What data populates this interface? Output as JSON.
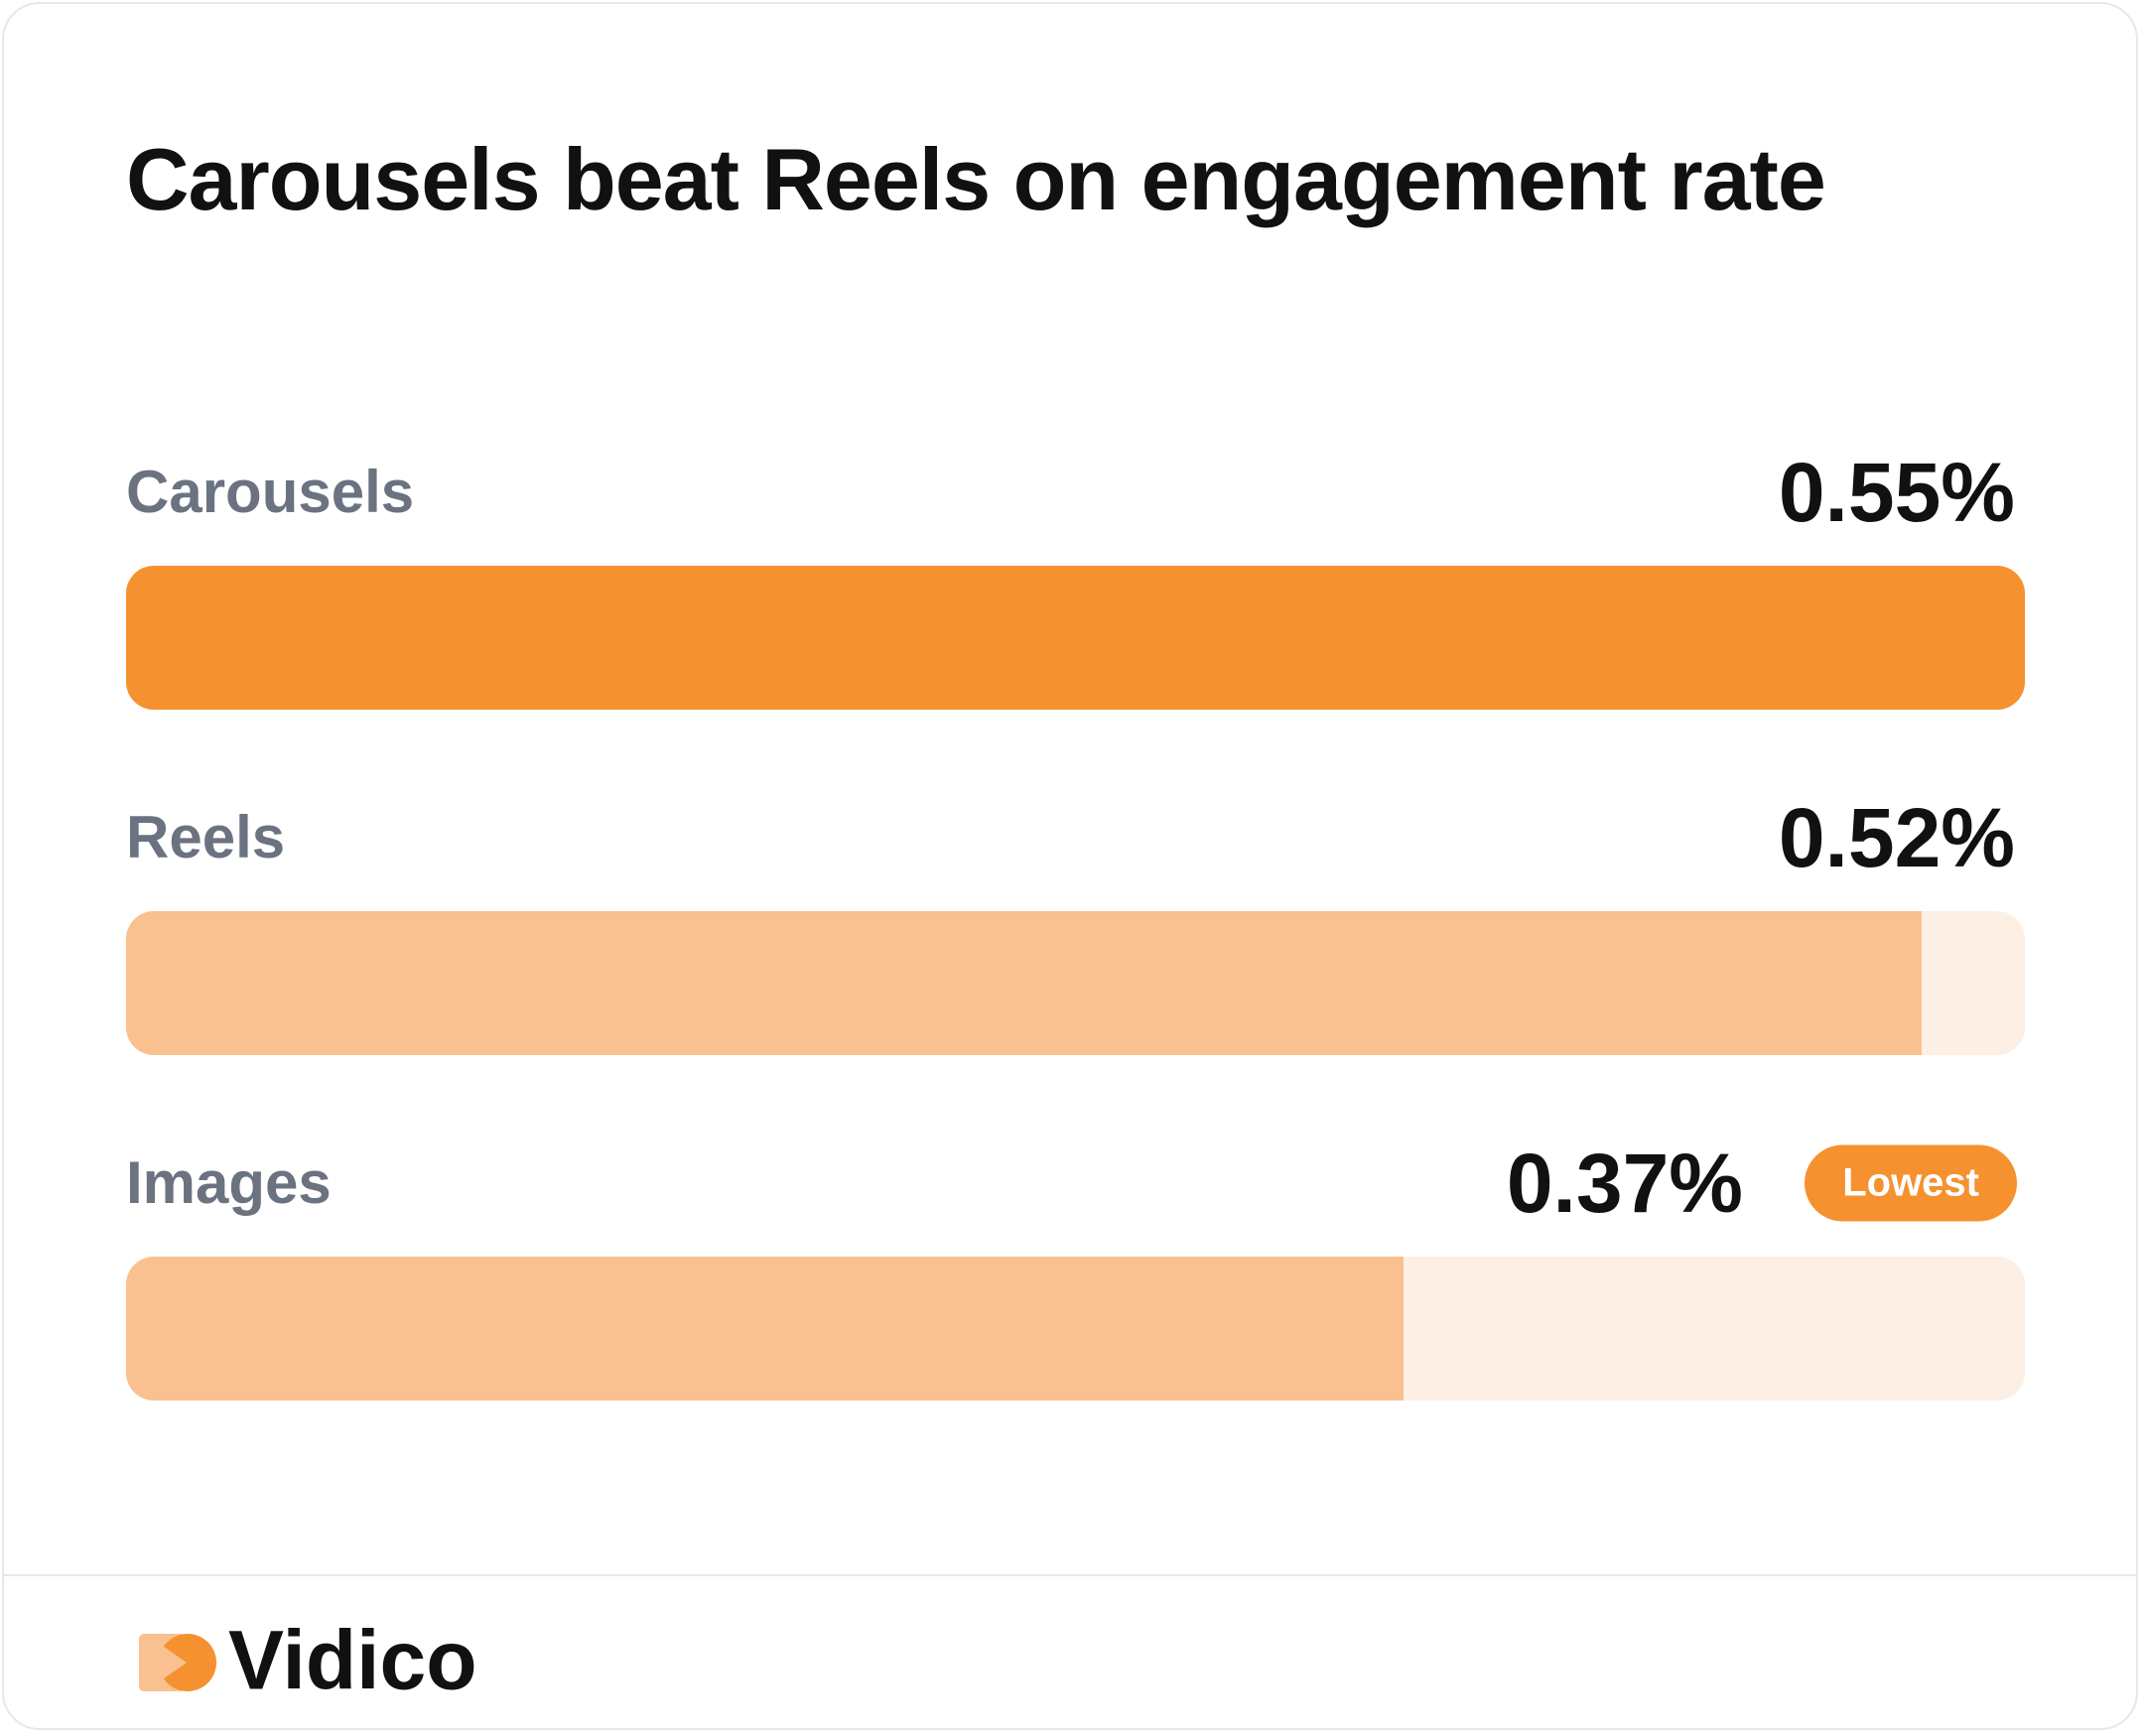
{
  "chart_data": {
    "type": "hbar",
    "title": "Carousels beat Reels on engagement rate",
    "categories": [
      "Carousels",
      "Reels",
      "Images"
    ],
    "values": [
      0.55,
      0.52,
      0.37
    ],
    "value_labels": [
      "0.55%",
      "0.52%",
      "0.37%"
    ],
    "xlim": [
      0,
      0.55
    ],
    "colors": [
      "#f5912f",
      "#f9c190",
      "#f9c190"
    ],
    "track_color": "#fdefe3",
    "annotation": "Lowest",
    "annotation_color": "#f5912f"
  },
  "footer": {
    "brand": "Vidico"
  }
}
